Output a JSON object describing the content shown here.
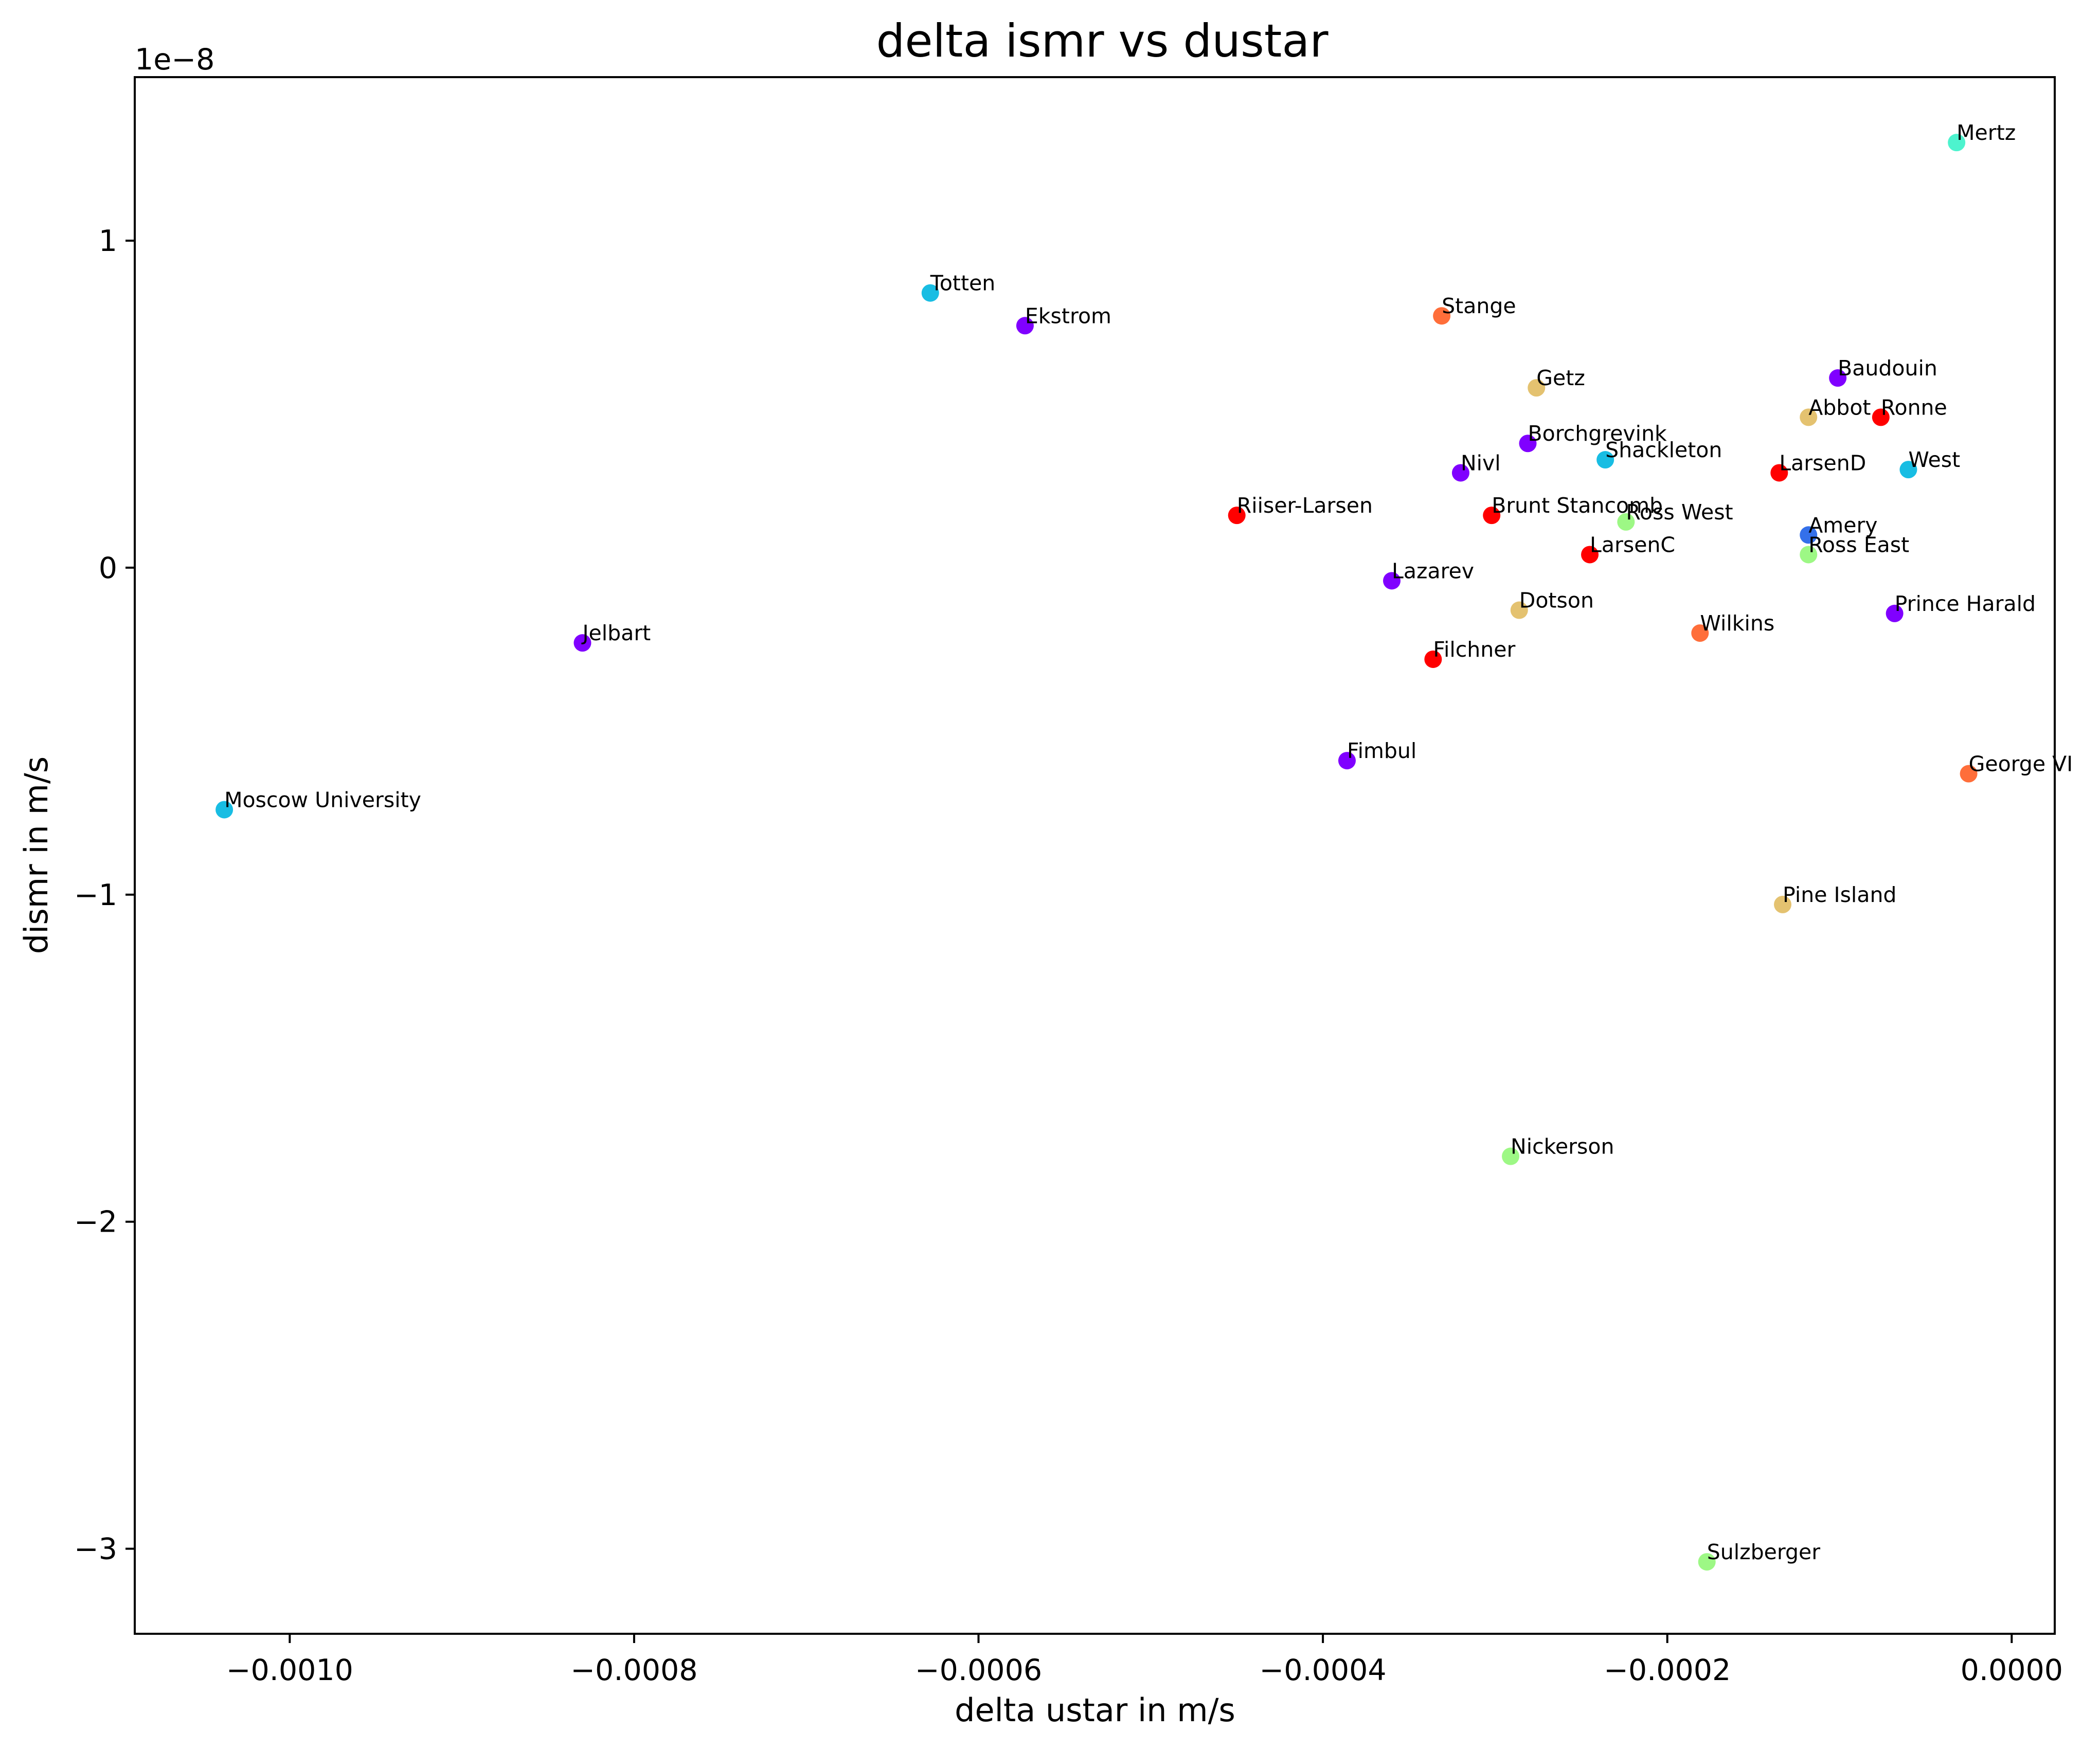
{
  "chart_data": {
    "type": "scatter",
    "title": "delta ismr vs dustar",
    "xlabel": "delta ustar in m/s",
    "ylabel": "dismr in m/s",
    "y_offset_text": "1e−8",
    "xlim": [
      -0.00109,
      2.5e-05
    ],
    "ylim": [
      -3.26,
      1.5
    ],
    "y_units_multiplier": 1e-08,
    "x_ticks": [
      -0.001,
      -0.0008,
      -0.0006,
      -0.0004,
      -0.0002,
      0.0
    ],
    "x_tick_labels": [
      "−0.0010",
      "−0.0008",
      "−0.0006",
      "−0.0004",
      "−0.0002",
      "0.0000"
    ],
    "y_ticks": [
      1,
      0,
      -1,
      -2,
      -3
    ],
    "y_tick_labels": [
      "1",
      "0",
      "−1",
      "−2",
      "−3"
    ],
    "grid": false,
    "legend": "none",
    "points": [
      {
        "label": "Mertz",
        "x": -3.2e-05,
        "y": 1.3,
        "color": "#4df3ce"
      },
      {
        "label": "Totten",
        "x": -0.000628,
        "y": 0.84,
        "color": "#18bde3"
      },
      {
        "label": "Ekstrom",
        "x": -0.000573,
        "y": 0.74,
        "color": "#8000ff"
      },
      {
        "label": "Stange",
        "x": -0.000331,
        "y": 0.77,
        "color": "#ff6e3a"
      },
      {
        "label": "Getz",
        "x": -0.000276,
        "y": 0.55,
        "color": "#e4c270"
      },
      {
        "label": "Baudouin",
        "x": -0.000101,
        "y": 0.58,
        "color": "#8000ff"
      },
      {
        "label": "Abbot",
        "x": -0.000118,
        "y": 0.46,
        "color": "#e4c270"
      },
      {
        "label": "Ronne",
        "x": -7.6e-05,
        "y": 0.46,
        "color": "#ff0000"
      },
      {
        "label": "Borchgrevink",
        "x": -0.000281,
        "y": 0.38,
        "color": "#8000ff"
      },
      {
        "label": "Shackleton",
        "x": -0.000236,
        "y": 0.33,
        "color": "#18bde3"
      },
      {
        "label": "Nivl",
        "x": -0.00032,
        "y": 0.29,
        "color": "#8000ff"
      },
      {
        "label": "LarsenD",
        "x": -0.000135,
        "y": 0.29,
        "color": "#ff0000"
      },
      {
        "label": "West",
        "x": -6e-05,
        "y": 0.3,
        "color": "#18bde3"
      },
      {
        "label": "Riiser-Larsen",
        "x": -0.00045,
        "y": 0.16,
        "color": "#ff0000"
      },
      {
        "label": "Brunt Stancomb",
        "x": -0.000302,
        "y": 0.16,
        "color": "#ff0000"
      },
      {
        "label": "Ross West",
        "x": -0.000224,
        "y": 0.14,
        "color": "#9df885"
      },
      {
        "label": "Amery",
        "x": -0.000118,
        "y": 0.1,
        "color": "#3470ea"
      },
      {
        "label": "Ross East",
        "x": -0.000118,
        "y": 0.04,
        "color": "#9df885"
      },
      {
        "label": "LarsenC",
        "x": -0.000245,
        "y": 0.04,
        "color": "#ff0000"
      },
      {
        "label": "Lazarev",
        "x": -0.00036,
        "y": -0.04,
        "color": "#8000ff"
      },
      {
        "label": "Dotson",
        "x": -0.000286,
        "y": -0.13,
        "color": "#e4c270"
      },
      {
        "label": "Prince Harald",
        "x": -6.8e-05,
        "y": -0.14,
        "color": "#8000ff"
      },
      {
        "label": "Wilkins",
        "x": -0.000181,
        "y": -0.2,
        "color": "#ff6e3a"
      },
      {
        "label": "Jelbart",
        "x": -0.00083,
        "y": -0.23,
        "color": "#8000ff"
      },
      {
        "label": "Filchner",
        "x": -0.000336,
        "y": -0.28,
        "color": "#ff0000"
      },
      {
        "label": "Fimbul",
        "x": -0.000386,
        "y": -0.59,
        "color": "#8000ff"
      },
      {
        "label": "George VI",
        "x": -2.5e-05,
        "y": -0.63,
        "color": "#ff6e3a"
      },
      {
        "label": "Moscow University",
        "x": -0.001038,
        "y": -0.74,
        "color": "#18bde3"
      },
      {
        "label": "Pine Island",
        "x": -0.000133,
        "y": -1.03,
        "color": "#e4c270"
      },
      {
        "label": "Nickerson",
        "x": -0.000291,
        "y": -1.8,
        "color": "#9df885"
      },
      {
        "label": "Sulzberger",
        "x": -0.000177,
        "y": -3.04,
        "color": "#9df885"
      }
    ]
  }
}
